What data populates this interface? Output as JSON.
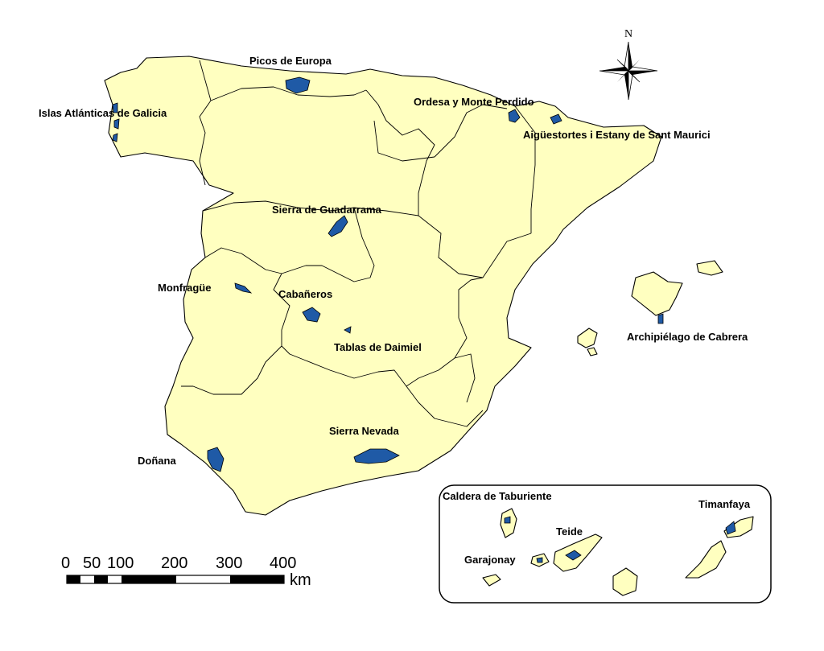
{
  "parks": {
    "picos": "Picos de Europa",
    "islas": "Islas Atlánticas de Galicia",
    "ordesa": "Ordesa y Monte Perdido",
    "aigues": "Aigüestortes i Estany de Sant Maurici",
    "guadarrama": "Sierra de Guadarrama",
    "monfrague": "Monfragüe",
    "cabaneros": "Cabañeros",
    "daimiel": "Tablas de Daimiel",
    "cabrera": "Archipiélago de Cabrera",
    "nevada": "Sierra Nevada",
    "donana": "Doñana",
    "taburiente": "Caldera de Taburiente",
    "teide": "Teide",
    "timanfaya": "Timanfaya",
    "garajonay": "Garajonay"
  },
  "compass": {
    "north": "N"
  },
  "scale_bar": {
    "ticks": [
      "0",
      "50",
      "100",
      "200",
      "300",
      "400"
    ],
    "unit": "km"
  },
  "colors": {
    "land": "#ffffc0",
    "park": "#1f5aa6"
  }
}
